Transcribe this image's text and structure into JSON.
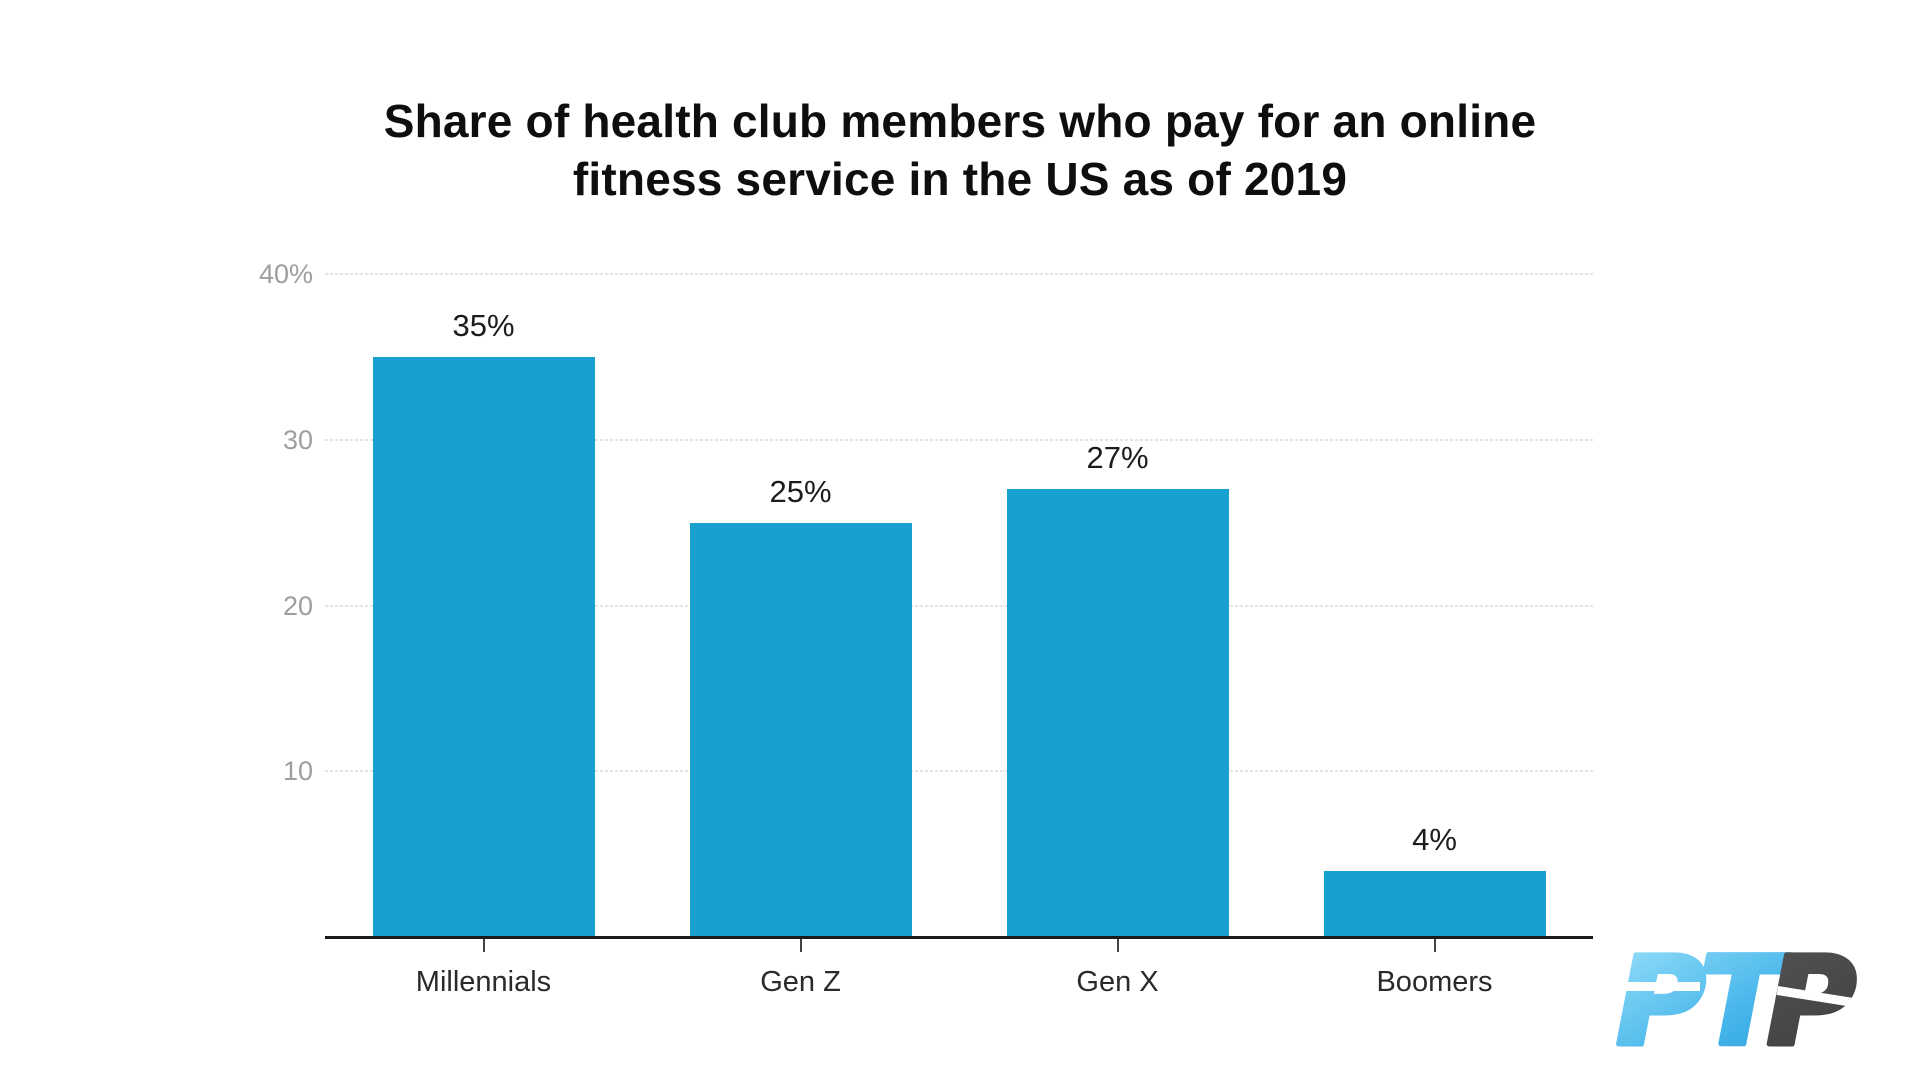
{
  "page": {
    "background": "#ffffff"
  },
  "header": {
    "title_line1": "Share of health club members who pay for an online",
    "title_line2": "fitness service in the US as of 2019"
  },
  "chart_data": {
    "type": "bar",
    "title": "Share of health club members who pay for an online fitness service in the US as of 2019",
    "categories": [
      "Millennials",
      "Gen Z",
      "Gen X",
      "Boomers"
    ],
    "values": [
      35,
      25,
      27,
      4
    ],
    "bar_labels": [
      "35%",
      "25%",
      "27%",
      "4%"
    ],
    "y_ticks": [
      {
        "value": 40,
        "label": "40%"
      },
      {
        "value": 30,
        "label": "30"
      },
      {
        "value": 20,
        "label": "20"
      },
      {
        "value": 10,
        "label": "10"
      }
    ],
    "ylim": [
      0,
      40
    ],
    "xlabel": "",
    "ylabel": "",
    "grid": true,
    "legend": "none",
    "bar_color": "#18a0ce",
    "axis_color": "#1a1a1a",
    "gridline_color": "#e4e4e4",
    "tick_label_color": "#9e9e9e",
    "value_label_color": "#1c1c1c",
    "category_label_color": "#2a2a2a",
    "tickmark_color": "#444444"
  },
  "logo": {
    "name": "PTP",
    "part1": "PT",
    "part2": "P",
    "blue_light": "#9de2fb",
    "blue_mid": "#45b5ea",
    "blue_dark": "#1f95cf",
    "gray_light": "#5d5d5d",
    "gray_dark": "#3e3e3e"
  }
}
